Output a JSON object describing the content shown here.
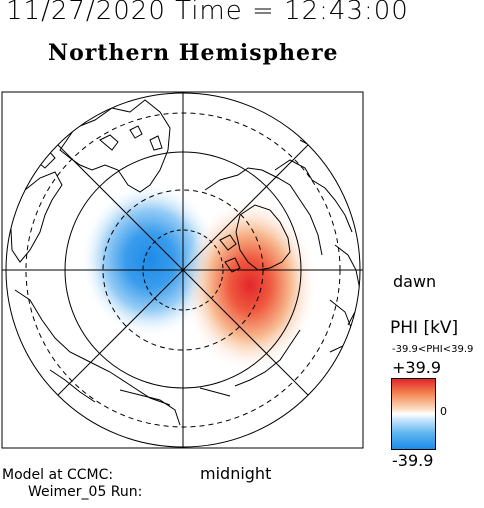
{
  "header": {
    "datetime": "11/27/2020 Time = 12:43:00",
    "hemisphere": "Northern Hemisphere"
  },
  "labels": {
    "dawn": "dawn",
    "midnight": "midnight",
    "credit_line1": "Model at CCMC:",
    "credit_line2": "Weimer_05 Run:"
  },
  "colorbar": {
    "title": "PHI [kV]",
    "range_text": "-39.9<PHI<39.9",
    "max_label": "+39.9",
    "zero_label": "0",
    "min_label": "-39.9",
    "max_color": "#e3262a",
    "mid_color": "#ffffff",
    "min_color": "#1d8be8"
  },
  "potential_cells": [
    {
      "sign": "negative",
      "peak_kV": -39.9,
      "region": "dusk / pre-noon",
      "color": "#1d8be8"
    },
    {
      "sign": "positive",
      "peak_kV": 39.9,
      "region": "dawn",
      "color": "#e3262a"
    }
  ],
  "map_style": {
    "grid": "polar, dashed latitude circles and solid circles",
    "background": "#ffffff",
    "coastline_color": "#000000"
  }
}
